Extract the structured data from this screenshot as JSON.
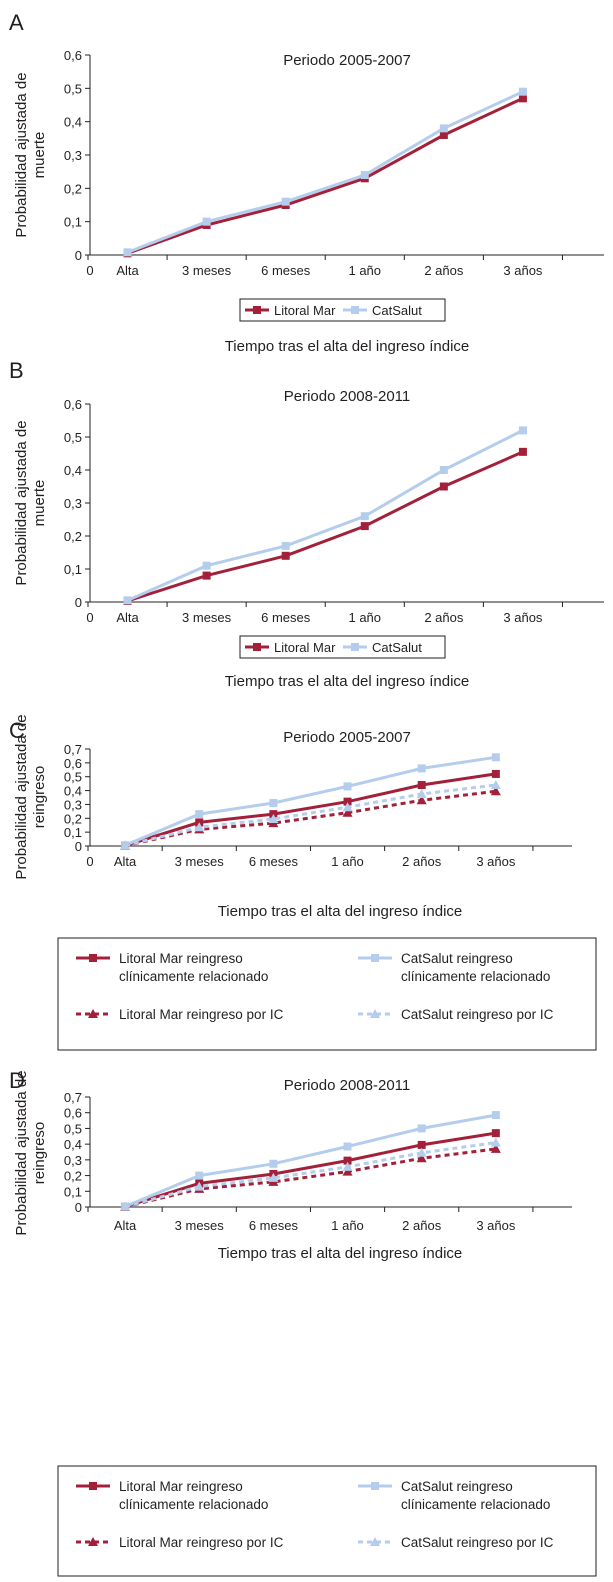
{
  "colors": {
    "litoral": "#a3203a",
    "catsalut": "#b4cdec",
    "axis": "#231f20"
  },
  "chart_data": [
    {
      "panel": "A",
      "type": "line",
      "title": "Periodo 2005-2007",
      "ylabel": [
        "Probabilidad ajustada de",
        "muerte"
      ],
      "xlabel": "Tiempo tras el alta del ingreso índice",
      "y_origin_label": "0",
      "x_origin_label": "0",
      "yticks": [
        "0,1",
        "0,2",
        "0,3",
        "0,4",
        "0,5",
        "0,6"
      ],
      "ylim": [
        0,
        0.6
      ],
      "categories": [
        "Alta",
        "3 meses",
        "6 meses",
        "1 año",
        "2 años",
        "3 años"
      ],
      "series": [
        {
          "name": "Litoral Mar",
          "color": "#a3203a",
          "dashed": false,
          "marker": "square",
          "values": [
            0.005,
            0.09,
            0.15,
            0.23,
            0.36,
            0.47
          ]
        },
        {
          "name": "CatSalut",
          "color": "#b4cdec",
          "dashed": false,
          "marker": "square",
          "values": [
            0.008,
            0.1,
            0.16,
            0.24,
            0.38,
            0.49
          ]
        }
      ],
      "legend": "bottom-center"
    },
    {
      "panel": "B",
      "type": "line",
      "title": "Periodo 2008-2011",
      "ylabel": [
        "Probabilidad ajustada de",
        "muerte"
      ],
      "xlabel": "Tiempo tras el alta del ingreso índice",
      "y_origin_label": "0",
      "x_origin_label": "0",
      "yticks": [
        "0,1",
        "0,2",
        "0,3",
        "0,4",
        "0,5",
        "0,6"
      ],
      "ylim": [
        0,
        0.6
      ],
      "categories": [
        "Alta",
        "3 meses",
        "6 meses",
        "1 año",
        "2 años",
        "3 años"
      ],
      "series": [
        {
          "name": "Litoral Mar",
          "color": "#a3203a",
          "dashed": false,
          "marker": "square",
          "values": [
            0.003,
            0.08,
            0.14,
            0.23,
            0.35,
            0.455
          ]
        },
        {
          "name": "CatSalut",
          "color": "#b4cdec",
          "dashed": false,
          "marker": "square",
          "values": [
            0.005,
            0.11,
            0.17,
            0.26,
            0.4,
            0.52
          ]
        }
      ],
      "legend": "bottom-center"
    },
    {
      "panel": "C",
      "type": "line",
      "title": "Periodo 2005-2007",
      "ylabel": [
        "Probabilidad ajustada de",
        "reingreso"
      ],
      "xlabel": "Tiempo tras el alta del ingreso índice",
      "y_origin_label": "0",
      "x_origin_label": "0",
      "yticks": [
        "0,1",
        "0,2",
        "0,3",
        "0,4",
        "0,5",
        "0,6",
        "0,7"
      ],
      "ylim": [
        0,
        0.7
      ],
      "categories": [
        "Alta",
        "3 meses",
        "6 meses",
        "1 año",
        "2 años",
        "3 años"
      ],
      "series": [
        {
          "name": "Litoral Mar reingreso clínicamente relacionado",
          "label_lines": [
            "Litoral Mar reingreso",
            "clínicamente relacionado"
          ],
          "color": "#a3203a",
          "dashed": false,
          "marker": "square",
          "values": [
            0.003,
            0.17,
            0.23,
            0.32,
            0.44,
            0.52
          ]
        },
        {
          "name": "CatSalut reingreso clínicamente relacionado",
          "label_lines": [
            "CatSalut reingreso",
            "clínicamente relacionado"
          ],
          "color": "#b4cdec",
          "dashed": false,
          "marker": "square",
          "values": [
            0.005,
            0.23,
            0.31,
            0.43,
            0.56,
            0.64
          ]
        },
        {
          "name": "Litoral Mar reingreso por IC",
          "label_lines": [
            "Litoral Mar reingreso por IC"
          ],
          "color": "#a3203a",
          "dashed": true,
          "marker": "triangle",
          "values": [
            0.002,
            0.12,
            0.165,
            0.24,
            0.33,
            0.395
          ]
        },
        {
          "name": "CatSalut reingreso por IC",
          "label_lines": [
            "CatSalut reingreso por IC"
          ],
          "color": "#b4cdec",
          "dashed": true,
          "marker": "triangle",
          "values": [
            0.003,
            0.135,
            0.195,
            0.28,
            0.375,
            0.44
          ]
        }
      ],
      "legend": "bottom-box"
    },
    {
      "panel": "D",
      "type": "line",
      "title": "Periodo 2008-2011",
      "ylabel": [
        "Probabilidad ajustada de",
        "reingreso"
      ],
      "xlabel": "Tiempo tras el alta del ingreso índice",
      "y_origin_label": "0",
      "x_origin_label": "",
      "yticks": [
        "0,1",
        "0,2",
        "0,3",
        "0,4",
        "0,5",
        "0,6",
        "0,7"
      ],
      "ylim": [
        0,
        0.7
      ],
      "categories": [
        "Alta",
        "3 meses",
        "6 meses",
        "1 año",
        "2 años",
        "3 años"
      ],
      "series": [
        {
          "name": "Litoral Mar reingreso clínicamente relacionado",
          "label_lines": [
            "Litoral Mar reingreso",
            "clínicamente relacionado"
          ],
          "color": "#a3203a",
          "dashed": false,
          "marker": "square",
          "values": [
            0.002,
            0.15,
            0.21,
            0.295,
            0.395,
            0.47
          ]
        },
        {
          "name": "CatSalut reingreso clínicamente relacionado",
          "label_lines": [
            "CatSalut reingreso",
            "clínicamente relacionado"
          ],
          "color": "#b4cdec",
          "dashed": false,
          "marker": "square",
          "values": [
            0.003,
            0.2,
            0.275,
            0.385,
            0.5,
            0.585
          ]
        },
        {
          "name": "Litoral Mar reingreso por IC",
          "label_lines": [
            "Litoral Mar reingreso por IC"
          ],
          "color": "#a3203a",
          "dashed": true,
          "marker": "triangle",
          "values": [
            0.001,
            0.115,
            0.16,
            0.225,
            0.31,
            0.37
          ]
        },
        {
          "name": "CatSalut reingreso por IC",
          "label_lines": [
            "CatSalut reingreso por IC"
          ],
          "color": "#b4cdec",
          "dashed": true,
          "marker": "triangle",
          "values": [
            0.002,
            0.13,
            0.185,
            0.255,
            0.345,
            0.41
          ]
        }
      ],
      "legend": "bottom-box"
    }
  ]
}
